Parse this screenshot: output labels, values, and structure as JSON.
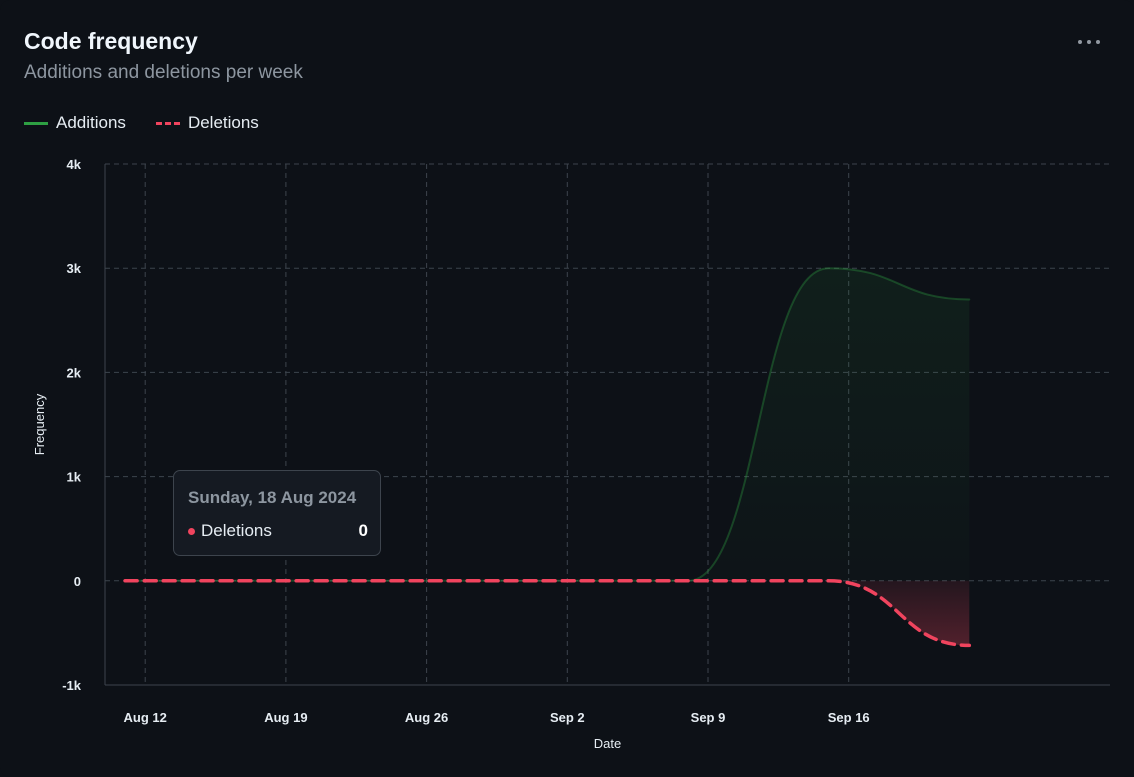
{
  "header": {
    "title": "Code frequency",
    "subtitle": "Additions and deletions per week"
  },
  "menu_icon": "more-horizontal-icon",
  "colors": {
    "background": "#0d1117",
    "additions": "#2ea043",
    "deletions": "#f0445e",
    "grid": "#3d444d"
  },
  "tooltip": {
    "date": "Sunday, 18 Aug 2024",
    "series": "Deletions",
    "value": "0"
  },
  "chart_data": {
    "type": "area",
    "title": "Code frequency",
    "subtitle": "Additions and deletions per week",
    "xlabel": "Date",
    "ylabel": "Frequency",
    "ylim": [
      -1000,
      4000
    ],
    "yticks": [
      {
        "value": -1000,
        "label": "-1k"
      },
      {
        "value": 0,
        "label": "0"
      },
      {
        "value": 1000,
        "label": "1k"
      },
      {
        "value": 2000,
        "label": "2k"
      },
      {
        "value": 3000,
        "label": "3k"
      },
      {
        "value": 4000,
        "label": "4k"
      }
    ],
    "xlim": [
      "2024-08-10",
      "2024-09-29"
    ],
    "xticks": [
      {
        "date": "2024-08-12",
        "label": "Aug 12"
      },
      {
        "date": "2024-08-19",
        "label": "Aug 19"
      },
      {
        "date": "2024-08-26",
        "label": "Aug 26"
      },
      {
        "date": "2024-09-02",
        "label": "Sep 2"
      },
      {
        "date": "2024-09-09",
        "label": "Sep 9"
      },
      {
        "date": "2024-09-16",
        "label": "Sep 16"
      }
    ],
    "grid": true,
    "legend_position": "top-left",
    "series": [
      {
        "name": "Additions",
        "style": "solid",
        "points": [
          {
            "x": "2024-08-11",
            "y": 0
          },
          {
            "x": "2024-08-18",
            "y": 0
          },
          {
            "x": "2024-08-25",
            "y": 0
          },
          {
            "x": "2024-09-01",
            "y": 0
          },
          {
            "x": "2024-09-08",
            "y": 0
          },
          {
            "x": "2024-09-15",
            "y": 3000
          },
          {
            "x": "2024-09-22",
            "y": 2700
          }
        ]
      },
      {
        "name": "Deletions",
        "style": "dashed",
        "points": [
          {
            "x": "2024-08-11",
            "y": 0
          },
          {
            "x": "2024-08-18",
            "y": 0
          },
          {
            "x": "2024-08-25",
            "y": 0
          },
          {
            "x": "2024-09-01",
            "y": 0
          },
          {
            "x": "2024-09-08",
            "y": 0
          },
          {
            "x": "2024-09-15",
            "y": 0
          },
          {
            "x": "2024-09-22",
            "y": -620
          }
        ]
      }
    ]
  }
}
